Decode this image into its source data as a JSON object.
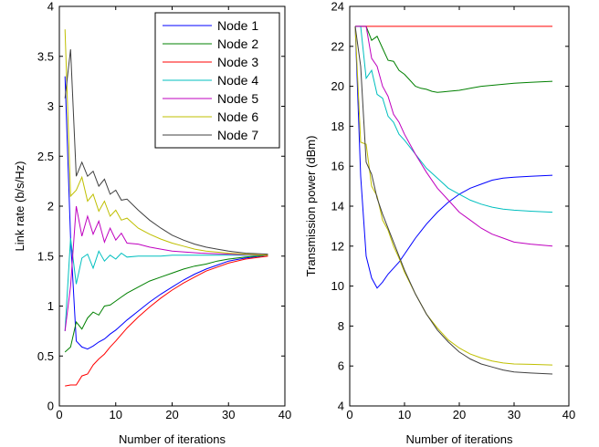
{
  "chart_data": [
    {
      "type": "line",
      "title": "",
      "xlabel": "Number of iterations",
      "ylabel": "Link rate (b/s/Hz)",
      "xlim": [
        0,
        40
      ],
      "ylim": [
        0,
        4
      ],
      "xticks": [
        "0",
        "10",
        "20",
        "30",
        "40"
      ],
      "yticks": [
        "0",
        "0.5",
        "1",
        "1.5",
        "2",
        "2.5",
        "3",
        "3.5",
        "4"
      ],
      "grid": false,
      "legend": "top-right",
      "series": [
        {
          "name": "Node 1",
          "color": "#0000ff",
          "x": [
            1,
            2,
            3,
            4,
            5,
            6,
            7,
            8,
            9,
            10,
            12,
            14,
            16,
            18,
            20,
            22,
            24,
            26,
            28,
            30,
            33,
            37
          ],
          "y": [
            3.3,
            1.68,
            0.65,
            0.59,
            0.57,
            0.6,
            0.64,
            0.67,
            0.72,
            0.76,
            0.86,
            0.95,
            1.04,
            1.12,
            1.19,
            1.26,
            1.32,
            1.37,
            1.41,
            1.45,
            1.48,
            1.51
          ]
        },
        {
          "name": "Node 2",
          "color": "#008000",
          "x": [
            1,
            2,
            3,
            4,
            5,
            6,
            7,
            8,
            9,
            10,
            11,
            12,
            14,
            16,
            18,
            20,
            22,
            24,
            26,
            28,
            30,
            33,
            37
          ],
          "y": [
            0.54,
            0.59,
            0.84,
            0.77,
            0.88,
            0.94,
            0.91,
            1.0,
            1.01,
            1.05,
            1.09,
            1.13,
            1.19,
            1.25,
            1.29,
            1.33,
            1.37,
            1.4,
            1.42,
            1.45,
            1.47,
            1.49,
            1.51
          ]
        },
        {
          "name": "Node 3",
          "color": "#ff0000",
          "x": [
            1,
            2,
            3,
            4,
            5,
            6,
            7,
            8,
            9,
            10,
            12,
            14,
            16,
            18,
            20,
            22,
            24,
            26,
            28,
            30,
            33,
            37
          ],
          "y": [
            0.2,
            0.21,
            0.21,
            0.3,
            0.32,
            0.41,
            0.47,
            0.52,
            0.59,
            0.65,
            0.78,
            0.89,
            0.99,
            1.08,
            1.16,
            1.23,
            1.29,
            1.35,
            1.39,
            1.43,
            1.47,
            1.5
          ]
        },
        {
          "name": "Node 4",
          "color": "#00bfbf",
          "x": [
            1,
            2,
            3,
            4,
            5,
            6,
            7,
            8,
            9,
            10,
            11,
            12,
            14,
            16,
            18,
            20,
            25,
            30,
            37
          ],
          "y": [
            0.75,
            1.68,
            1.22,
            1.48,
            1.52,
            1.38,
            1.55,
            1.45,
            1.51,
            1.47,
            1.53,
            1.49,
            1.5,
            1.5,
            1.5,
            1.51,
            1.51,
            1.51,
            1.51
          ]
        },
        {
          "name": "Node 5",
          "color": "#bf00bf",
          "x": [
            1,
            2,
            3,
            4,
            5,
            6,
            7,
            8,
            9,
            10,
            11,
            12,
            14,
            16,
            18,
            20,
            25,
            30,
            37
          ],
          "y": [
            0.75,
            1.2,
            2.0,
            1.7,
            1.9,
            1.72,
            1.85,
            1.64,
            1.78,
            1.66,
            1.73,
            1.63,
            1.62,
            1.59,
            1.57,
            1.55,
            1.53,
            1.52,
            1.51
          ]
        },
        {
          "name": "Node 6",
          "color": "#bfbf00",
          "x": [
            1,
            2,
            3,
            4,
            5,
            6,
            7,
            8,
            9,
            10,
            11,
            12,
            14,
            16,
            18,
            20,
            22,
            24,
            26,
            28,
            30,
            33,
            37
          ],
          "y": [
            3.77,
            2.1,
            2.16,
            2.29,
            2.05,
            2.12,
            1.95,
            2.05,
            1.9,
            1.96,
            1.86,
            1.88,
            1.78,
            1.72,
            1.67,
            1.63,
            1.6,
            1.57,
            1.55,
            1.54,
            1.53,
            1.52,
            1.51
          ]
        },
        {
          "name": "Node 7",
          "color": "#404040",
          "x": [
            1,
            2,
            3,
            4,
            5,
            6,
            7,
            8,
            9,
            10,
            11,
            12,
            14,
            16,
            18,
            20,
            22,
            24,
            26,
            28,
            30,
            33,
            37
          ],
          "y": [
            3.08,
            3.57,
            2.3,
            2.44,
            2.3,
            2.35,
            2.2,
            2.27,
            2.12,
            2.16,
            2.06,
            2.07,
            1.96,
            1.86,
            1.78,
            1.71,
            1.66,
            1.62,
            1.59,
            1.57,
            1.55,
            1.53,
            1.52
          ]
        }
      ]
    },
    {
      "type": "line",
      "title": "",
      "xlabel": "Number of iterations",
      "ylabel": "Transmission power (dBm)",
      "xlim": [
        0,
        40
      ],
      "ylim": [
        4,
        24
      ],
      "xticks": [
        "0",
        "10",
        "20",
        "30",
        "40"
      ],
      "yticks": [
        "4",
        "6",
        "8",
        "10",
        "12",
        "14",
        "16",
        "18",
        "20",
        "22",
        "24"
      ],
      "grid": false,
      "legend": "none",
      "series": [
        {
          "color": "#0000ff",
          "x": [
            1,
            2,
            3,
            4,
            5,
            6,
            7,
            8,
            9,
            10,
            11,
            12,
            14,
            16,
            18,
            20,
            22,
            24,
            26,
            28,
            30,
            33,
            37
          ],
          "y": [
            23.0,
            15.5,
            11.5,
            10.4,
            9.9,
            10.2,
            10.6,
            10.9,
            11.2,
            11.6,
            12.0,
            12.4,
            13.1,
            13.7,
            14.2,
            14.6,
            14.9,
            15.1,
            15.3,
            15.4,
            15.45,
            15.5,
            15.55
          ]
        },
        {
          "color": "#008000",
          "x": [
            1,
            2,
            3,
            4,
            5,
            6,
            7,
            8,
            9,
            10,
            11,
            12,
            13,
            14,
            15,
            16,
            17,
            18,
            20,
            22,
            24,
            26,
            28,
            30,
            33,
            37
          ],
          "y": [
            23.0,
            23.0,
            23.0,
            22.3,
            22.5,
            21.9,
            21.3,
            21.25,
            20.8,
            20.6,
            20.3,
            20.0,
            19.9,
            19.85,
            19.75,
            19.7,
            19.72,
            19.75,
            19.8,
            19.9,
            20.0,
            20.05,
            20.1,
            20.15,
            20.2,
            20.25
          ]
        },
        {
          "color": "#ff0000",
          "x": [
            1,
            10,
            20,
            30,
            37
          ],
          "y": [
            23.0,
            23.0,
            23.0,
            23.0,
            23.0
          ]
        },
        {
          "color": "#00bfbf",
          "x": [
            1,
            2,
            3,
            4,
            5,
            6,
            7,
            8,
            9,
            10,
            12,
            14,
            16,
            18,
            20,
            22,
            24,
            26,
            28,
            30,
            33,
            37
          ],
          "y": [
            23.0,
            23.0,
            20.4,
            20.8,
            19.6,
            19.4,
            18.5,
            18.2,
            17.6,
            17.3,
            16.6,
            15.9,
            15.4,
            14.9,
            14.6,
            14.3,
            14.1,
            13.95,
            13.85,
            13.8,
            13.75,
            13.7
          ]
        },
        {
          "color": "#bf00bf",
          "x": [
            1,
            2,
            3,
            4,
            5,
            6,
            7,
            8,
            9,
            10,
            12,
            14,
            16,
            18,
            20,
            22,
            24,
            26,
            28,
            30,
            33,
            37
          ],
          "y": [
            23.0,
            23.0,
            23.0,
            21.4,
            21.0,
            20.0,
            19.5,
            18.6,
            18.2,
            17.6,
            16.6,
            15.7,
            14.9,
            14.3,
            13.7,
            13.3,
            12.9,
            12.6,
            12.4,
            12.2,
            12.1,
            12.0
          ]
        },
        {
          "color": "#bfbf00",
          "x": [
            1,
            2,
            3,
            4,
            5,
            6,
            7,
            8,
            9,
            10,
            12,
            14,
            16,
            18,
            20,
            22,
            24,
            26,
            28,
            30,
            33,
            37
          ],
          "y": [
            23.0,
            17.2,
            17.1,
            15.0,
            14.5,
            13.3,
            12.8,
            12.0,
            11.4,
            10.7,
            9.6,
            8.6,
            7.9,
            7.3,
            6.9,
            6.6,
            6.4,
            6.25,
            6.15,
            6.1,
            6.08,
            6.05
          ]
        },
        {
          "color": "#404040",
          "x": [
            1,
            2,
            3,
            4,
            5,
            6,
            7,
            8,
            9,
            10,
            12,
            14,
            16,
            18,
            20,
            22,
            24,
            26,
            28,
            30,
            33,
            37
          ],
          "y": [
            23.0,
            21.0,
            16.2,
            15.6,
            14.4,
            13.6,
            12.9,
            12.2,
            11.5,
            10.8,
            9.6,
            8.6,
            7.8,
            7.2,
            6.7,
            6.35,
            6.1,
            5.95,
            5.8,
            5.7,
            5.65,
            5.6
          ]
        }
      ]
    }
  ]
}
